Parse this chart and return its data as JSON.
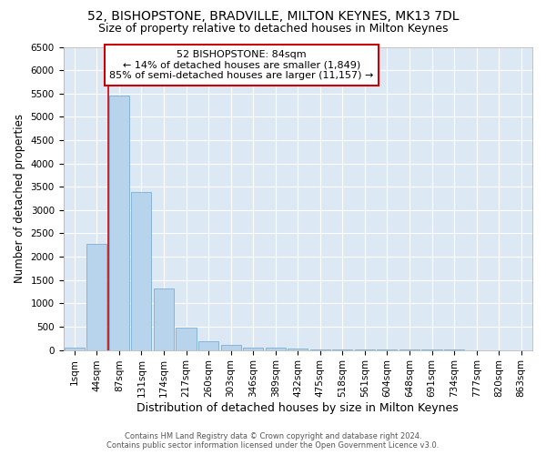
{
  "title": "52, BISHOPSTONE, BRADVILLE, MILTON KEYNES, MK13 7DL",
  "subtitle": "Size of property relative to detached houses in Milton Keynes",
  "xlabel": "Distribution of detached houses by size in Milton Keynes",
  "ylabel": "Number of detached properties",
  "footer_line1": "Contains HM Land Registry data © Crown copyright and database right 2024.",
  "footer_line2": "Contains public sector information licensed under the Open Government Licence v3.0.",
  "annotation_title": "52 BISHOPSTONE: 84sqm",
  "annotation_line1": "← 14% of detached houses are smaller (1,849)",
  "annotation_line2": "85% of semi-detached houses are larger (11,157) →",
  "bar_labels": [
    "1sqm",
    "44sqm",
    "87sqm",
    "131sqm",
    "174sqm",
    "217sqm",
    "260sqm",
    "303sqm",
    "346sqm",
    "389sqm",
    "432sqm",
    "475sqm",
    "518sqm",
    "561sqm",
    "604sqm",
    "648sqm",
    "691sqm",
    "734sqm",
    "777sqm",
    "820sqm",
    "863sqm"
  ],
  "bar_values": [
    60,
    2280,
    5450,
    3380,
    1310,
    480,
    185,
    100,
    60,
    50,
    35,
    20,
    10,
    5,
    5,
    3,
    2,
    2,
    1,
    1,
    1
  ],
  "bar_color": "#b8d4ec",
  "bar_edge_color": "#7aafd4",
  "red_line_x": 1.5,
  "ylim_max": 6500,
  "ytick_step": 500,
  "annotation_box_edge": "#cc0000",
  "red_line_color": "#cc0000",
  "fig_bg_color": "#ffffff",
  "plot_bg_color": "#dde8f5",
  "grid_color": "#ffffff",
  "title_fontsize": 10,
  "subtitle_fontsize": 9,
  "ylabel_fontsize": 8.5,
  "xlabel_fontsize": 9,
  "tick_fontsize": 7.5,
  "annotation_fontsize": 8,
  "footer_fontsize": 6
}
